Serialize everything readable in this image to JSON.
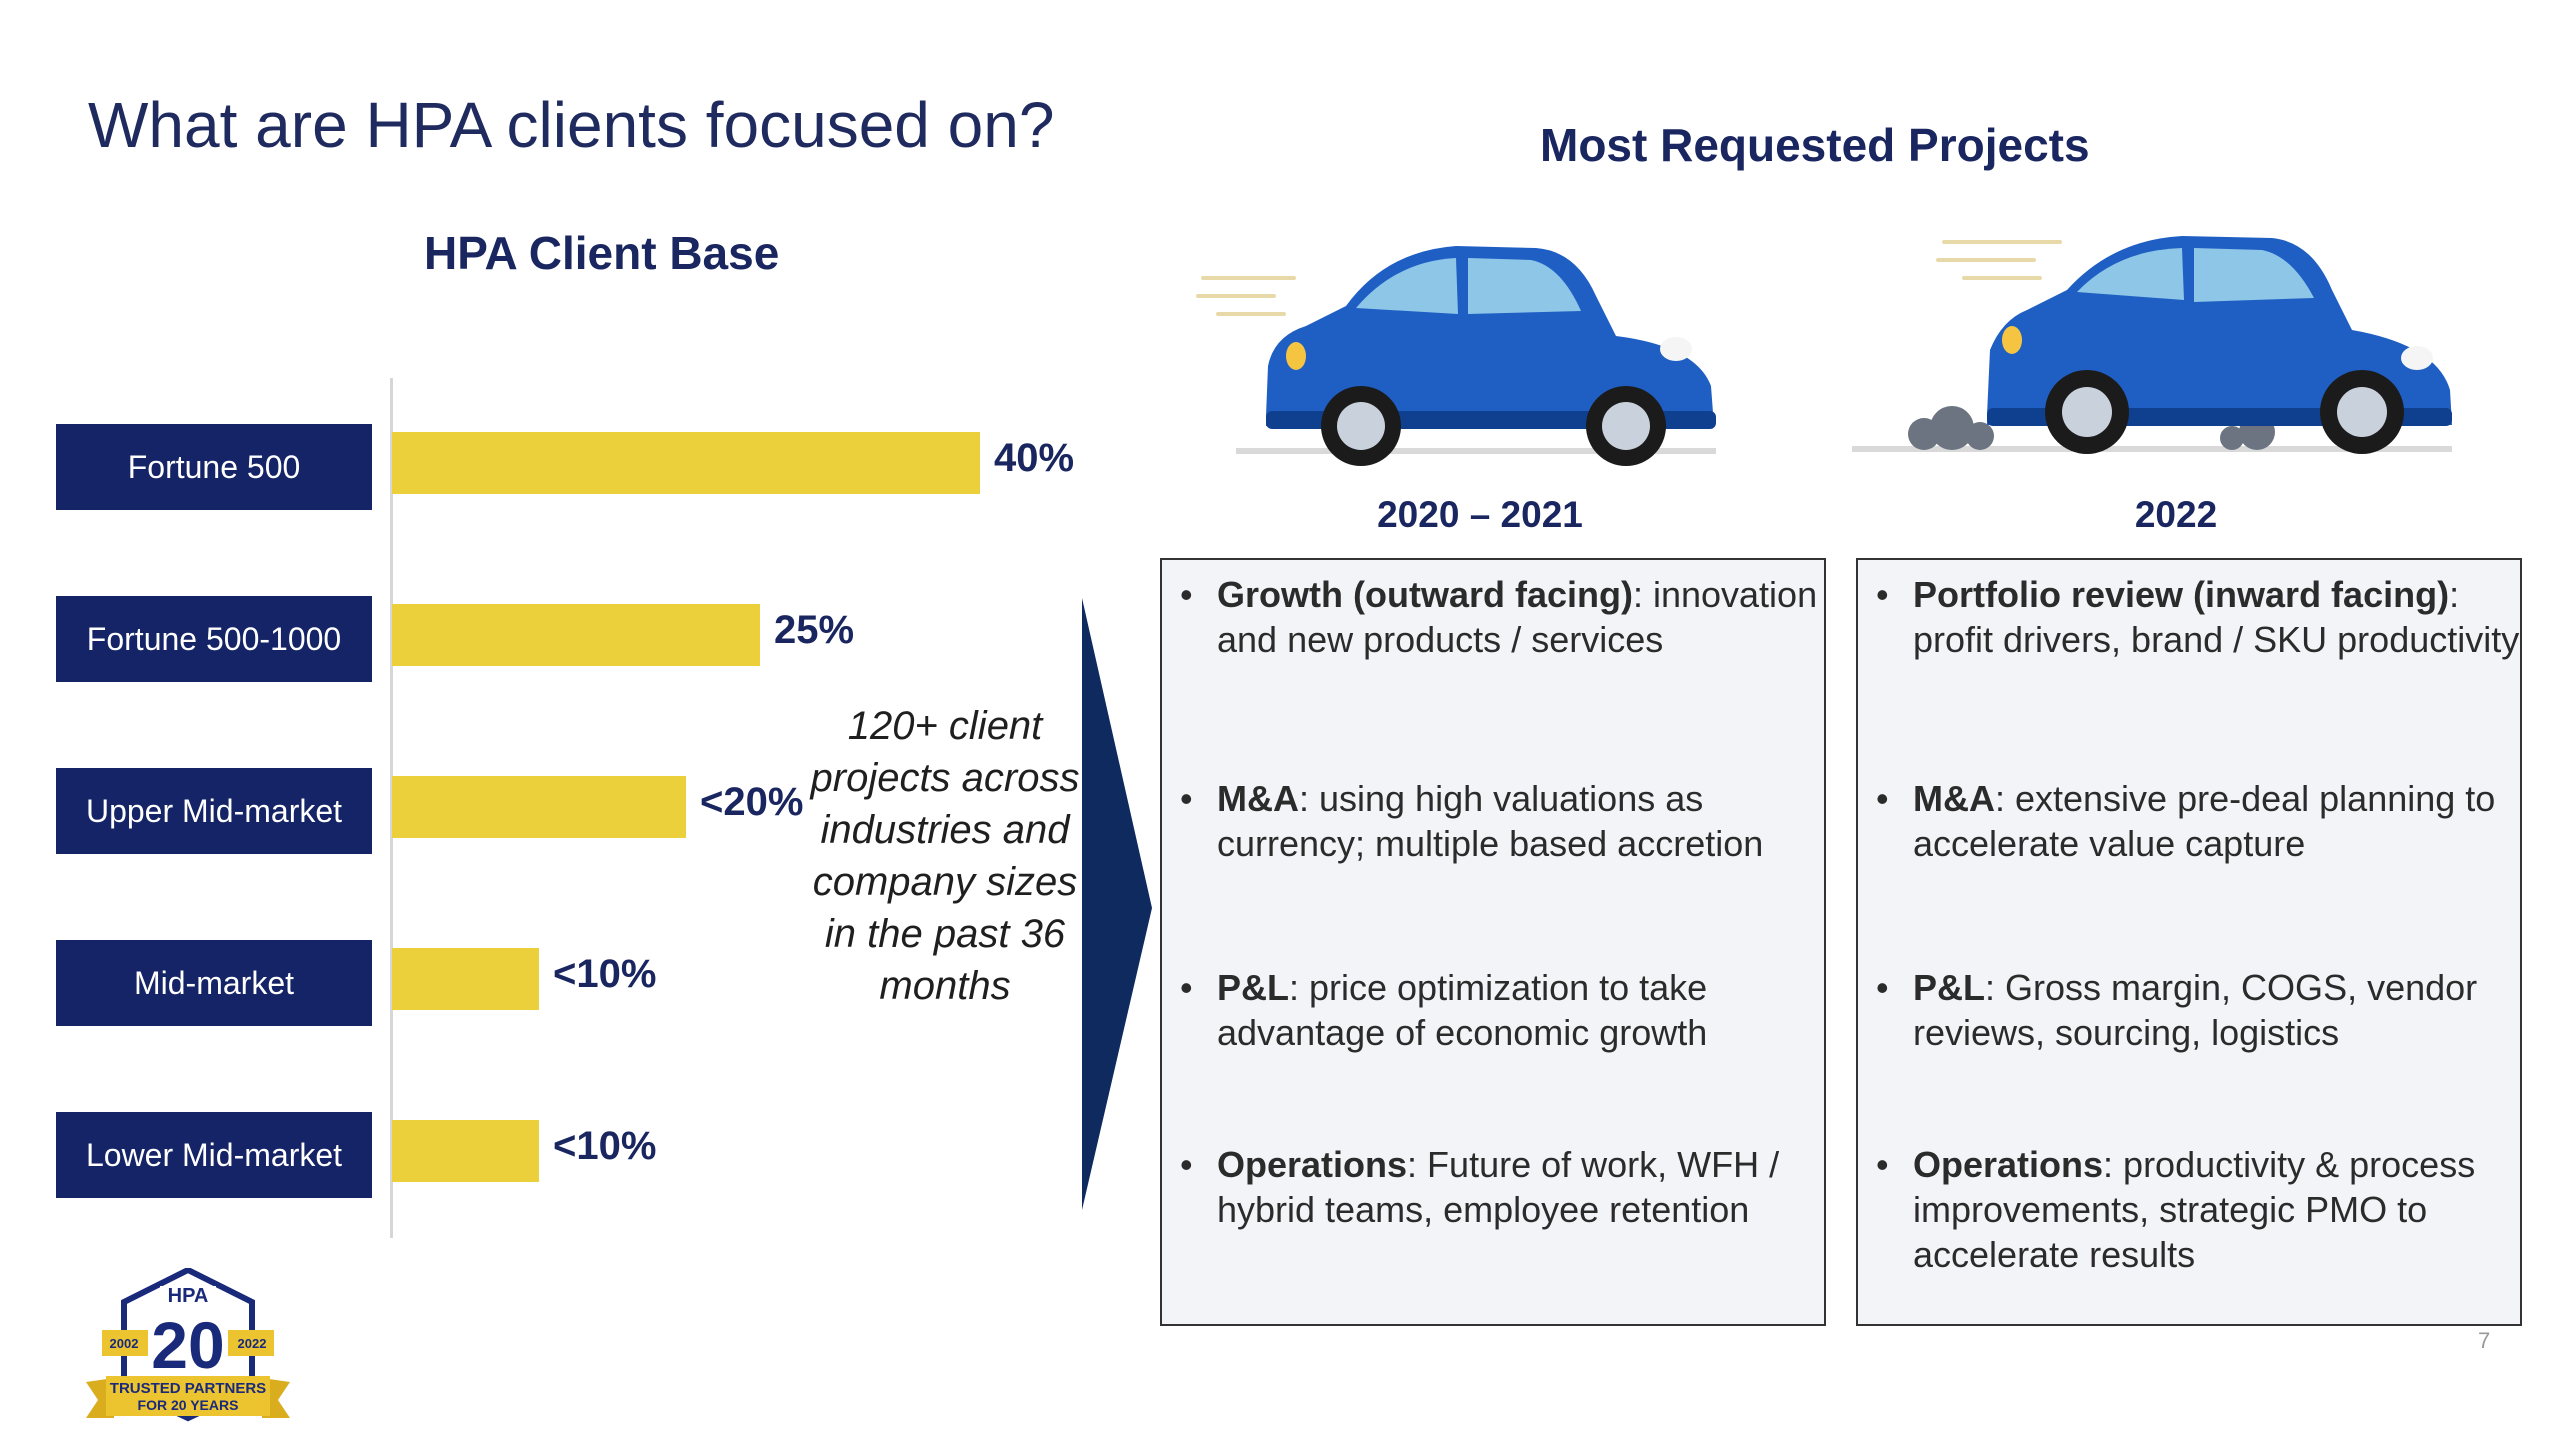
{
  "title": "What are HPA clients focused on?",
  "client_base": {
    "heading": "HPA Client Base",
    "rows": [
      {
        "label": "Fortune 500",
        "value": "40%",
        "fraction": 0.4
      },
      {
        "label": "Fortune 500-1000",
        "value": "25%",
        "fraction": 0.25
      },
      {
        "label": "Upper Mid-market",
        "value": "<20%",
        "fraction": 0.2
      },
      {
        "label": "Mid-market",
        "value": "<10%",
        "fraction": 0.1
      },
      {
        "label": "Lower Mid-market",
        "value": "<10%",
        "fraction": 0.1
      }
    ],
    "bar_color": "#ecd03b",
    "label_box_color": "#142466"
  },
  "callout": "120+ client projects across industries and company sizes in the past 36 months",
  "projects": {
    "heading": "Most Requested Projects",
    "columns": [
      {
        "period": "2020 – 2021",
        "items": [
          {
            "bold": "Growth (outward facing)",
            "rest": ": innovation and new products / services"
          },
          {
            "bold": "M&A",
            "rest": ": using high valuations as currency; multiple based accretion"
          },
          {
            "bold": "P&L",
            "rest": ": price optimization to take advantage of economic growth"
          },
          {
            "bold": "Operations",
            "rest": ": Future of work, WFH / hybrid teams, employee retention"
          }
        ]
      },
      {
        "period": "2022",
        "items": [
          {
            "bold": "Portfolio review (inward facing)",
            "rest": ": profit drivers, brand / SKU productivity"
          },
          {
            "bold": "M&A",
            "rest": ": extensive pre-deal planning to accelerate value capture"
          },
          {
            "bold": "P&L",
            "rest": ": Gross margin, COGS, vendor reviews, sourcing, logistics"
          },
          {
            "bold": "Operations",
            "rest": ": productivity & process improvements, strategic PMO to accelerate results"
          }
        ]
      }
    ],
    "bullet_char": "•"
  },
  "logo": {
    "brand": "HPA",
    "number": "20",
    "year_start": "2002",
    "year_end": "2022",
    "banner_line1": "TRUSTED PARTNERS",
    "banner_line2": "FOR 20 YEARS"
  },
  "icons": [
    "car-driving-icon",
    "car-accelerating-icon"
  ],
  "page_number": "7"
}
